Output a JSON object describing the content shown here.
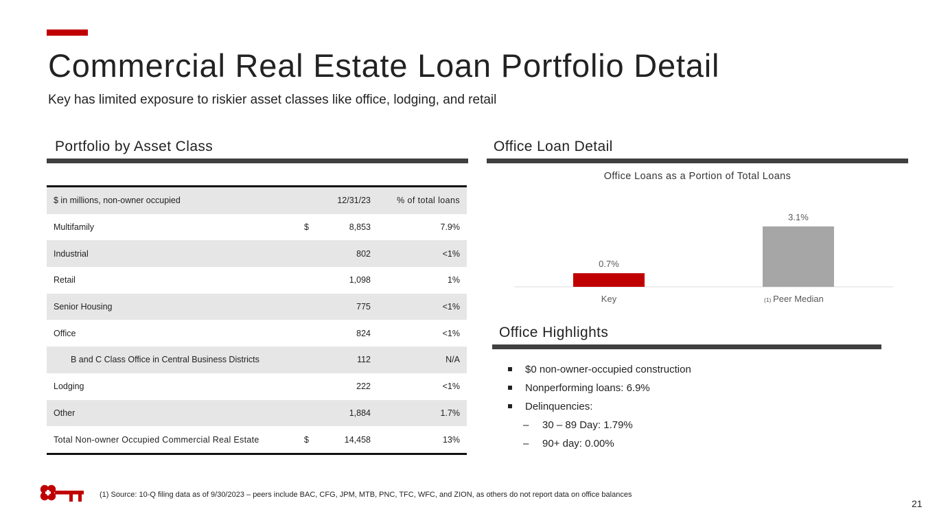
{
  "colors": {
    "accent": "#c00000",
    "key_bar": "#c00000",
    "peer_bar": "#a6a6a6",
    "section_bar": "#404040",
    "row_shade": "#e6e6e6"
  },
  "slide": {
    "title": "Commercial Real Estate Loan Portfolio Detail",
    "subtitle": "Key has limited exposure to riskier asset classes like office, lodging, and retail",
    "page_number": "21"
  },
  "portfolio": {
    "section_title": "Portfolio by Asset Class",
    "header": {
      "label": "$ in millions, non-owner occupied",
      "col_date": "12/31/23",
      "col_pct": "% of total loans"
    },
    "rows": [
      {
        "label": "Multifamily",
        "dollar": "$",
        "value": "8,853",
        "pct": "7.9%"
      },
      {
        "label": "Industrial",
        "dollar": "",
        "value": "802",
        "pct": "<1%"
      },
      {
        "label": "Retail",
        "dollar": "",
        "value": "1,098",
        "pct": "1%"
      },
      {
        "label": "Senior Housing",
        "dollar": "",
        "value": "775",
        "pct": "<1%"
      },
      {
        "label": "Office",
        "dollar": "",
        "value": "824",
        "pct": "<1%"
      },
      {
        "label": "B and C Class Office in Central Business Districts",
        "dollar": "",
        "value": "112",
        "pct": "N/A",
        "indent": true
      },
      {
        "label": "Lodging",
        "dollar": "",
        "value": "222",
        "pct": "<1%"
      },
      {
        "label": "Other",
        "dollar": "",
        "value": "1,884",
        "pct": "1.7%"
      }
    ],
    "total": {
      "label": "Total Non-owner Occupied Commercial Real Estate",
      "dollar": "$",
      "value": "14,458",
      "pct": "13%"
    }
  },
  "office_detail": {
    "section_title": "Office Loan Detail",
    "chart_title": "Office Loans as a Portion of Total Loans",
    "peer_footnote_marker": "(1)"
  },
  "chart_data": {
    "type": "bar",
    "title": "Office Loans as a Portion of Total Loans",
    "categories": [
      "Key",
      "Peer Median"
    ],
    "values": [
      0.7,
      3.1
    ],
    "data_labels": [
      "0.7%",
      "3.1%"
    ],
    "ylim": [
      0,
      3.1
    ],
    "grid": false,
    "xlabel": "",
    "ylabel": ""
  },
  "highlights": {
    "section_title": "Office Highlights",
    "items": [
      "$0 non-owner-occupied construction",
      "Nonperforming loans: 6.9%",
      "Delinquencies:"
    ],
    "sub_items": [
      "30 – 89 Day: 1.79%",
      "90+ day: 0.00%"
    ],
    "sub_marker": "–"
  },
  "footnote": "(1) Source: 10-Q filing data as of 9/30/2023 – peers include BAC, CFG, JPM, MTB, PNC, TFC, WFC, and ZION, as others do not report data on office balances",
  "logo": {
    "icon": "key-logo-icon"
  }
}
